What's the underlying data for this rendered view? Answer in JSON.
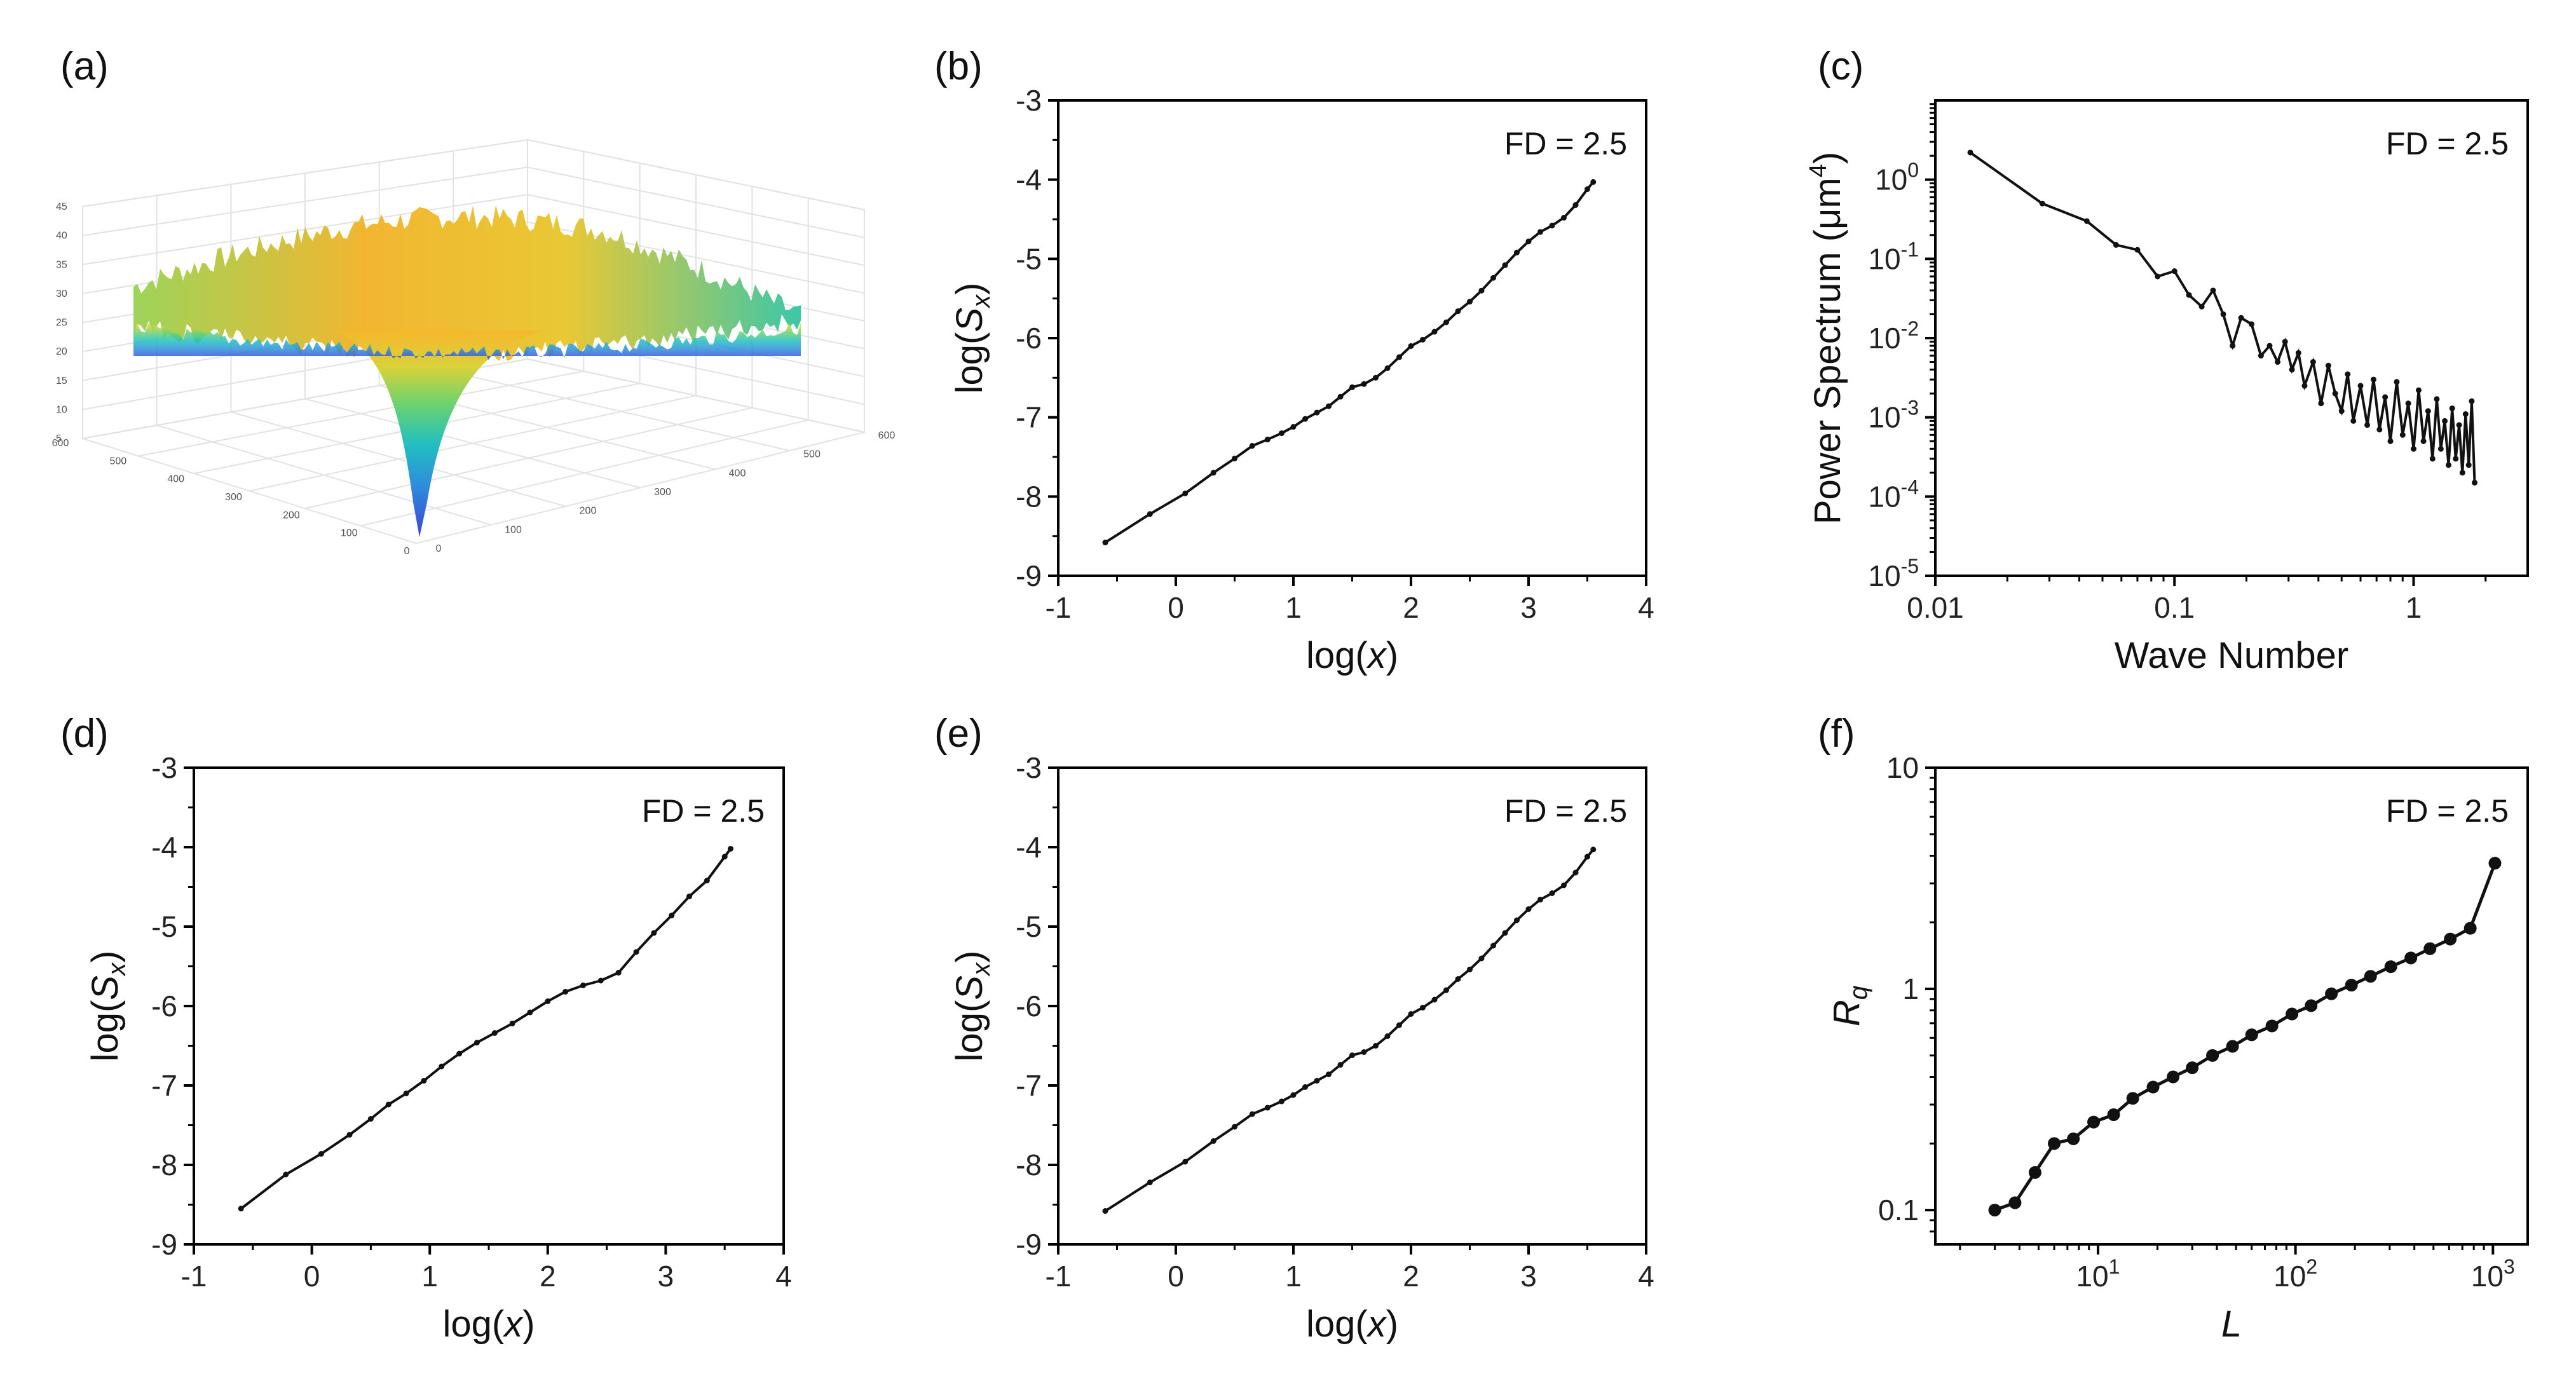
{
  "panel_labels": [
    "(a)",
    "(b)",
    "(c)",
    "(d)",
    "(e)",
    "(f)"
  ],
  "chart_data": [
    {
      "id": "a",
      "type": "surface",
      "z_ticks": [
        "5",
        "10",
        "15",
        "20",
        "25",
        "30",
        "35",
        "40",
        "45"
      ],
      "x_ticks": [
        "0",
        "100",
        "200",
        "300",
        "400",
        "500",
        "600"
      ],
      "y_ticks": [
        "0",
        "100",
        "200",
        "300",
        "400",
        "500",
        "600"
      ],
      "colormap": [
        "#3a45d8",
        "#2f8ddb",
        "#21c0c0",
        "#6fd36c",
        "#d8d23a",
        "#f6b72c"
      ]
    },
    {
      "id": "b",
      "type": "line",
      "xlabel": "log(x)",
      "ylabel": "log(Sx)",
      "annotation": "FD = 2.5",
      "xlim": [
        -1,
        4
      ],
      "ylim": [
        -9,
        -3
      ],
      "xticks": [
        -1,
        0,
        1,
        2,
        3,
        4
      ],
      "yticks": [
        -9,
        -8,
        -7,
        -6,
        -5,
        -4,
        -3
      ],
      "x": [
        -0.6,
        -0.22,
        0.08,
        0.32,
        0.5,
        0.65,
        0.78,
        0.9,
        1.0,
        1.1,
        1.2,
        1.3,
        1.4,
        1.5,
        1.6,
        1.7,
        1.8,
        1.9,
        2.0,
        2.1,
        2.2,
        2.3,
        2.4,
        2.5,
        2.6,
        2.7,
        2.8,
        2.9,
        3.0,
        3.1,
        3.2,
        3.3,
        3.4,
        3.5,
        3.55
      ],
      "y": [
        -8.58,
        -8.22,
        -7.96,
        -7.7,
        -7.52,
        -7.36,
        -7.28,
        -7.2,
        -7.12,
        -7.02,
        -6.94,
        -6.86,
        -6.74,
        -6.62,
        -6.58,
        -6.5,
        -6.38,
        -6.24,
        -6.1,
        -6.02,
        -5.92,
        -5.8,
        -5.66,
        -5.54,
        -5.4,
        -5.24,
        -5.08,
        -4.92,
        -4.78,
        -4.66,
        -4.58,
        -4.48,
        -4.32,
        -4.12,
        -4.03
      ]
    },
    {
      "id": "c",
      "type": "line",
      "xlabel": "Wave Number",
      "ylabel": "Power Spectrum (μm⁴)",
      "annotation": "FD = 2.5",
      "xscale": "log",
      "yscale": "log",
      "xlim": [
        0.01,
        3
      ],
      "ylim": [
        1e-05,
        10
      ],
      "xticks": [
        {
          "v": 0.01,
          "label": "0.01"
        },
        {
          "v": 0.1,
          "label": "0.1"
        },
        {
          "v": 1,
          "label": "1"
        }
      ],
      "yticks": [
        {
          "v": 1e-05,
          "base": "10",
          "exp": "-5"
        },
        {
          "v": 0.0001,
          "base": "10",
          "exp": "-4"
        },
        {
          "v": 0.001,
          "base": "10",
          "exp": "-3"
        },
        {
          "v": 0.01,
          "base": "10",
          "exp": "-2"
        },
        {
          "v": 0.1,
          "base": "10",
          "exp": "-1"
        },
        {
          "v": 1,
          "base": "10",
          "exp": "0"
        }
      ],
      "x": [
        0.014,
        0.028,
        0.043,
        0.057,
        0.07,
        0.085,
        0.1,
        0.115,
        0.13,
        0.145,
        0.16,
        0.175,
        0.19,
        0.21,
        0.23,
        0.25,
        0.27,
        0.29,
        0.31,
        0.33,
        0.35,
        0.38,
        0.41,
        0.44,
        0.47,
        0.5,
        0.53,
        0.56,
        0.6,
        0.64,
        0.68,
        0.72,
        0.76,
        0.8,
        0.85,
        0.9,
        0.95,
        1.0,
        1.05,
        1.1,
        1.15,
        1.2,
        1.25,
        1.3,
        1.35,
        1.4,
        1.45,
        1.5,
        1.55,
        1.6,
        1.65,
        1.7,
        1.75,
        1.8
      ],
      "y": [
        2.2,
        0.5,
        0.3,
        0.15,
        0.13,
        0.06,
        0.07,
        0.035,
        0.025,
        0.04,
        0.02,
        0.008,
        0.018,
        0.015,
        0.006,
        0.008,
        0.005,
        0.009,
        0.004,
        0.0065,
        0.0025,
        0.005,
        0.0015,
        0.0045,
        0.002,
        0.0012,
        0.0035,
        0.0009,
        0.0025,
        0.0008,
        0.003,
        0.0007,
        0.0018,
        0.0005,
        0.0028,
        0.0006,
        0.0015,
        0.0004,
        0.0022,
        0.0005,
        0.0012,
        0.0003,
        0.0017,
        0.0004,
        0.0009,
        0.00025,
        0.0013,
        0.0003,
        0.0008,
        0.0002,
        0.0011,
        0.00025,
        0.0016,
        0.00015
      ]
    },
    {
      "id": "d",
      "type": "line",
      "xlabel": "log(x)",
      "ylabel": "log(Sx)",
      "annotation": "FD = 2.5",
      "xlim": [
        -1,
        4
      ],
      "ylim": [
        -9,
        -3
      ],
      "xticks": [
        -1,
        0,
        1,
        2,
        3,
        4
      ],
      "yticks": [
        -9,
        -8,
        -7,
        -6,
        -5,
        -4,
        -3
      ],
      "x": [
        -0.6,
        -0.22,
        0.08,
        0.32,
        0.5,
        0.65,
        0.8,
        0.95,
        1.1,
        1.25,
        1.4,
        1.55,
        1.7,
        1.85,
        2.0,
        2.15,
        2.3,
        2.45,
        2.6,
        2.75,
        2.9,
        3.05,
        3.2,
        3.35,
        3.5,
        3.55
      ],
      "y": [
        -8.55,
        -8.12,
        -7.86,
        -7.62,
        -7.42,
        -7.24,
        -7.1,
        -6.94,
        -6.76,
        -6.6,
        -6.46,
        -6.34,
        -6.22,
        -6.08,
        -5.94,
        -5.82,
        -5.74,
        -5.68,
        -5.58,
        -5.32,
        -5.08,
        -4.86,
        -4.62,
        -4.42,
        -4.12,
        -4.02
      ]
    },
    {
      "id": "e",
      "type": "line",
      "xlabel": "log(x)",
      "ylabel": "log(Sx)",
      "annotation": "FD = 2.5",
      "xlim": [
        -1,
        4
      ],
      "ylim": [
        -9,
        -3
      ],
      "xticks": [
        -1,
        0,
        1,
        2,
        3,
        4
      ],
      "yticks": [
        -9,
        -8,
        -7,
        -6,
        -5,
        -4,
        -3
      ],
      "x": [
        -0.6,
        -0.22,
        0.08,
        0.32,
        0.5,
        0.65,
        0.78,
        0.9,
        1.0,
        1.1,
        1.2,
        1.3,
        1.4,
        1.5,
        1.6,
        1.7,
        1.8,
        1.9,
        2.0,
        2.1,
        2.2,
        2.3,
        2.4,
        2.5,
        2.6,
        2.7,
        2.8,
        2.9,
        3.0,
        3.1,
        3.2,
        3.3,
        3.4,
        3.5,
        3.55
      ],
      "y": [
        -8.58,
        -8.22,
        -7.96,
        -7.7,
        -7.52,
        -7.36,
        -7.28,
        -7.2,
        -7.12,
        -7.02,
        -6.94,
        -6.86,
        -6.74,
        -6.62,
        -6.58,
        -6.5,
        -6.38,
        -6.24,
        -6.1,
        -6.02,
        -5.92,
        -5.8,
        -5.66,
        -5.54,
        -5.4,
        -5.24,
        -5.08,
        -4.92,
        -4.78,
        -4.66,
        -4.58,
        -4.48,
        -4.32,
        -4.12,
        -4.03
      ]
    },
    {
      "id": "f",
      "type": "line",
      "xlabel": "L",
      "ylabel": "Rq",
      "annotation": "FD = 2.5",
      "xscale": "log",
      "yscale": "log",
      "xlim": [
        1.5,
        1500
      ],
      "ylim": [
        0.07,
        10
      ],
      "xticks": [
        {
          "v": 10,
          "base": "10",
          "exp": "1"
        },
        {
          "v": 100,
          "base": "10",
          "exp": "2"
        },
        {
          "v": 1000,
          "base": "10",
          "exp": "3"
        }
      ],
      "yticks": [
        {
          "v": 0.1,
          "label": "0.1"
        },
        {
          "v": 1,
          "label": "1"
        },
        {
          "v": 10,
          "label": "10"
        }
      ],
      "x": [
        3,
        3.8,
        4.8,
        6,
        7.5,
        9.5,
        12,
        15,
        19,
        24,
        30,
        38,
        48,
        60,
        76,
        96,
        120,
        152,
        192,
        240,
        304,
        384,
        480,
        608,
        768,
        1024
      ],
      "y": [
        0.1,
        0.108,
        0.148,
        0.2,
        0.21,
        0.25,
        0.27,
        0.32,
        0.36,
        0.4,
        0.44,
        0.5,
        0.55,
        0.62,
        0.68,
        0.77,
        0.84,
        0.95,
        1.04,
        1.14,
        1.26,
        1.38,
        1.52,
        1.68,
        1.88,
        3.7
      ]
    }
  ]
}
